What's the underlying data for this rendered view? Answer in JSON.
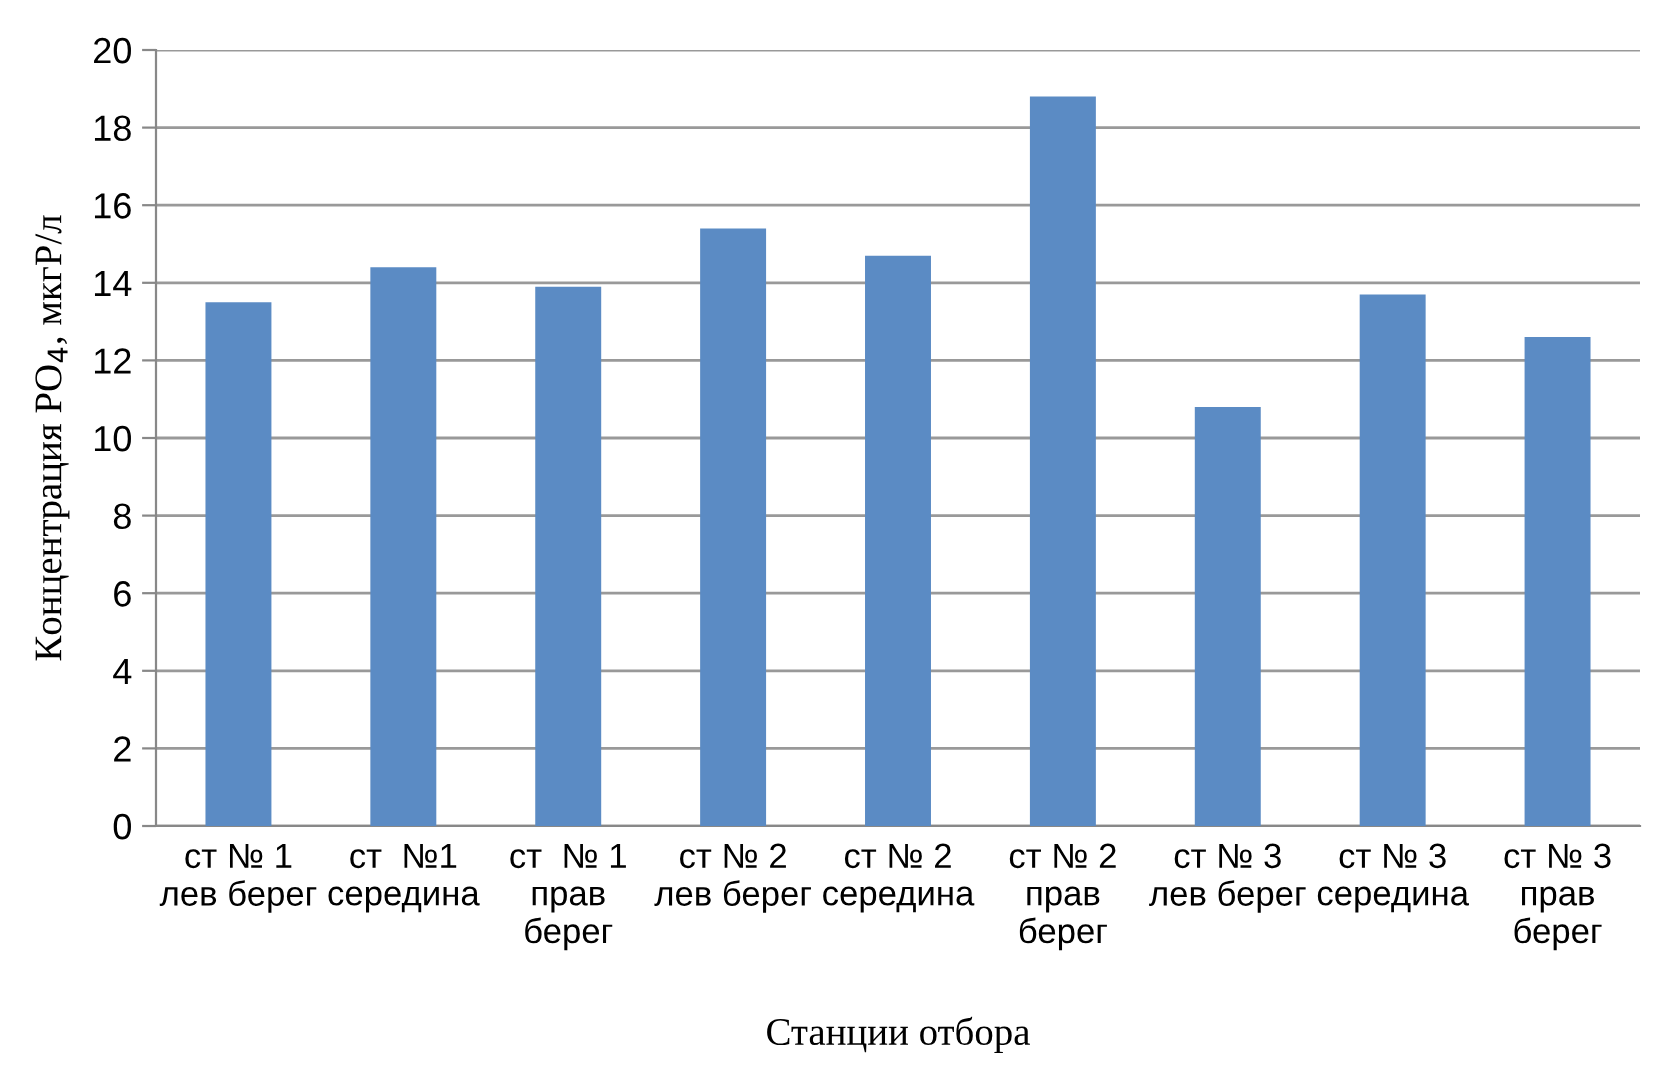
{
  "chart_data": {
    "type": "bar",
    "xlabel": "Станции отбора",
    "ylabel": "Концентрация PO$_{4}$, мкгР/л",
    "categories": [
      "ст № 1\nлев берег",
      "ст  №1\nсередина",
      "ст  № 1\nправ\nберег",
      "ст № 2\nлев берег",
      "ст № 2\nсередина",
      "ст № 2\nправ\nберег",
      "ст № 3\nлев берег",
      "ст № 3\nсередина",
      "ст № 3\nправ\nберег"
    ],
    "values": [
      13.5,
      14.4,
      13.9,
      15.4,
      14.7,
      18.8,
      10.8,
      13.7,
      12.6
    ],
    "color": "#5b8bc4",
    "ylim": [
      0,
      20
    ],
    "yticks": [
      0,
      2,
      4,
      6,
      8,
      10,
      12,
      14,
      16,
      18,
      20
    ],
    "grid": "y",
    "legend": false
  }
}
